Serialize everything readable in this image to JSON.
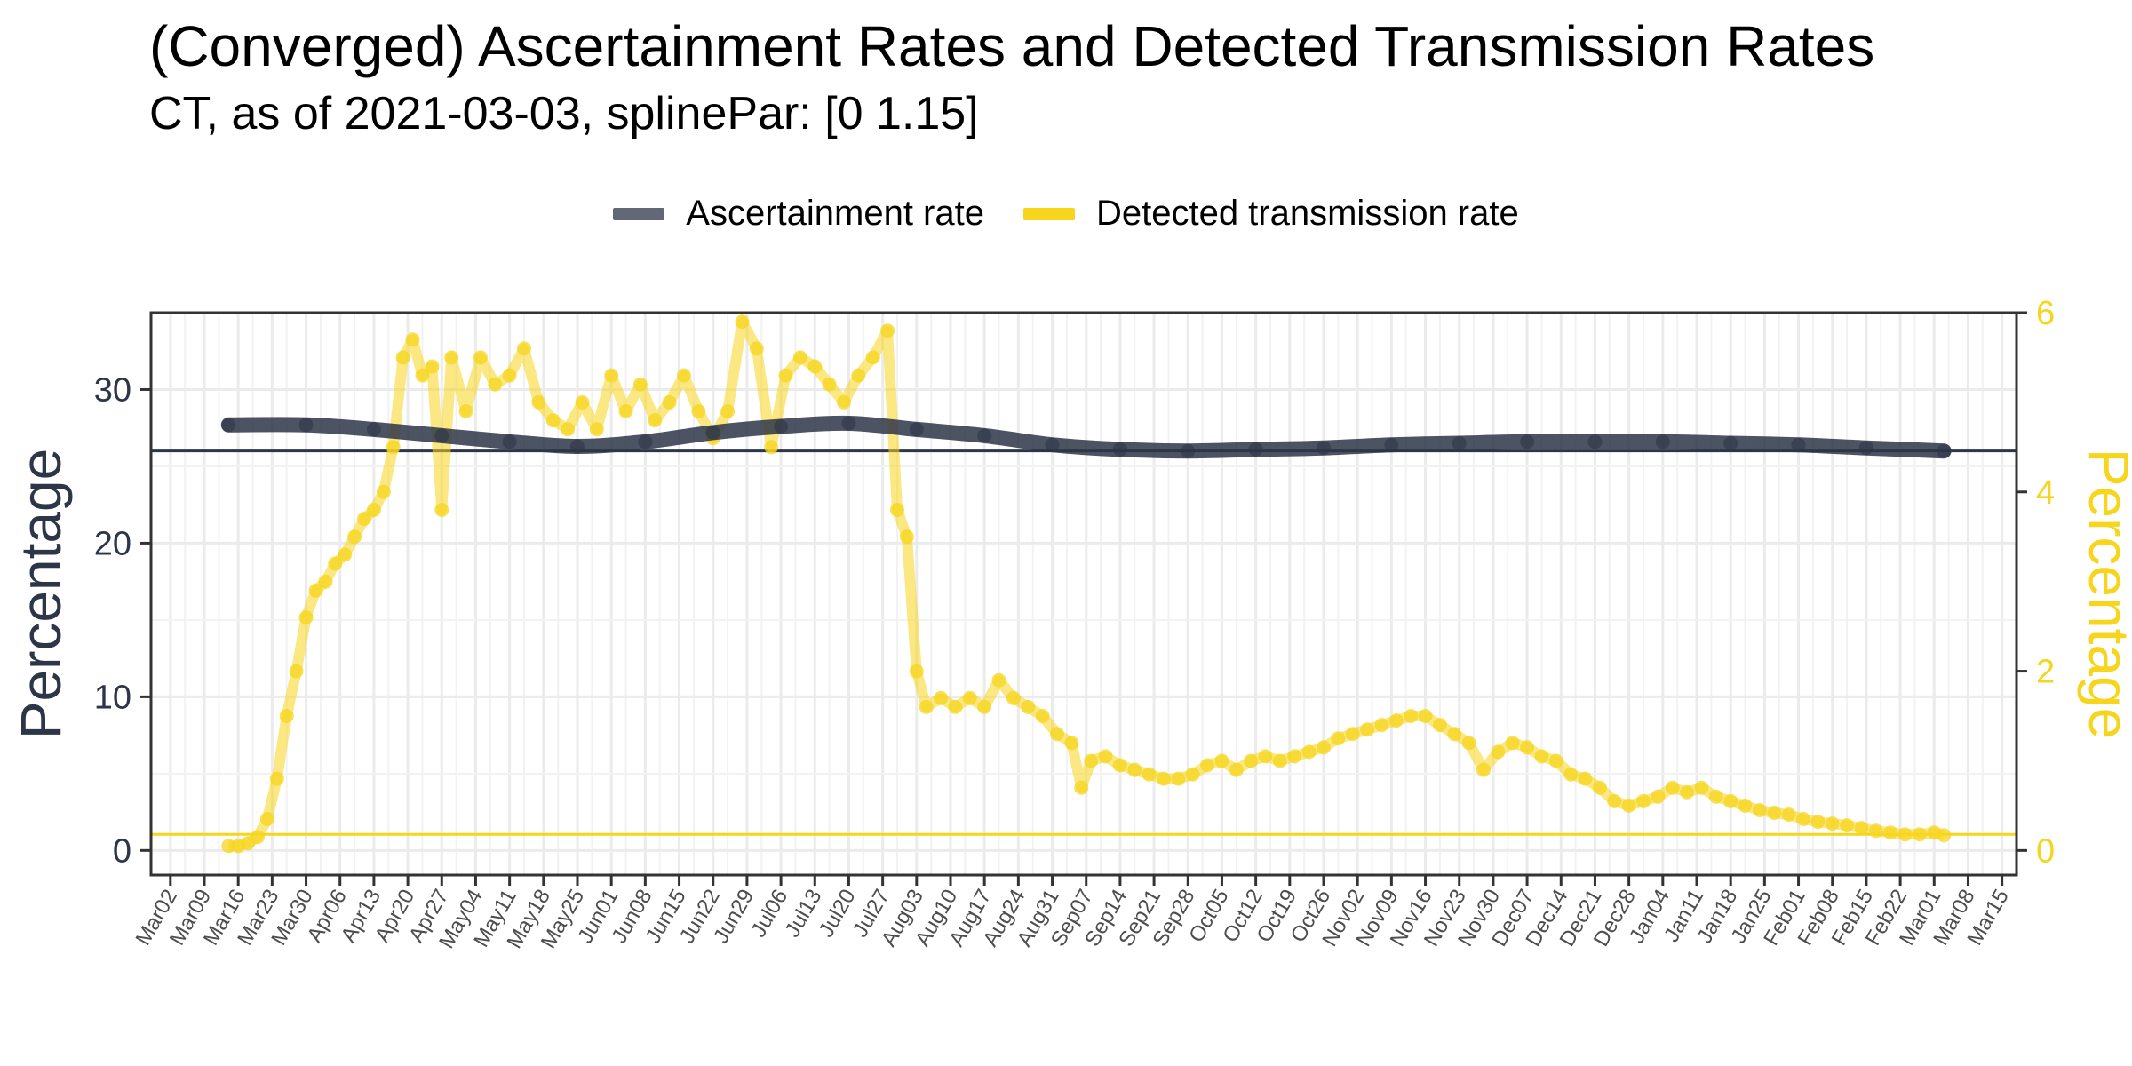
{
  "chart_data": {
    "type": "line",
    "title": "(Converged) Ascertainment Rates and Detected Transmission Rates",
    "subtitle": "CT, as of 2021-03-03, splinePar: [0 1.15]",
    "ylabel_left": "Percentage",
    "ylabel_right": "Percentage",
    "xlabel": "",
    "x_range": [
      "2020-02-27",
      "2021-03-18"
    ],
    "ylim_left": [
      -1.6,
      35
    ],
    "ylim_right": [
      -0.274,
      6.0
    ],
    "grid": true,
    "legend_position": "top",
    "x_tick_labels": [
      "Mar02",
      "Mar09",
      "Mar16",
      "Mar23",
      "Mar30",
      "Apr06",
      "Apr13",
      "Apr20",
      "Apr27",
      "May04",
      "May11",
      "May18",
      "May25",
      "Jun01",
      "Jun08",
      "Jun15",
      "Jun22",
      "Jun29",
      "Jul06",
      "Jul13",
      "Jul20",
      "Jul27",
      "Aug03",
      "Aug10",
      "Aug17",
      "Aug24",
      "Aug31",
      "Sep07",
      "Sep14",
      "Sep21",
      "Sep28",
      "Oct05",
      "Oct12",
      "Oct19",
      "Oct26",
      "Nov02",
      "Nov09",
      "Nov16",
      "Nov23",
      "Nov30",
      "Dec07",
      "Dec14",
      "Dec21",
      "Dec28",
      "Jan04",
      "Jan11",
      "Jan18",
      "Jan25",
      "Feb01",
      "Feb08",
      "Feb15",
      "Feb22",
      "Mar01",
      "Mar08",
      "Mar15"
    ],
    "y_ticks_left": [
      "0",
      "10",
      "20",
      "30"
    ],
    "y_ticks_right": [
      "0",
      "2",
      "4",
      "6"
    ],
    "reference_lines": [
      {
        "axis": "left",
        "value": 26.0,
        "color": "#2d3648"
      },
      {
        "axis": "right",
        "value": 0.18,
        "color": "#f7d51d"
      }
    ],
    "series": [
      {
        "name": "Ascertainment rate",
        "axis": "left",
        "color": "#2d3648",
        "x": [
          "2020-03-14",
          "2020-03-30",
          "2020-04-13",
          "2020-04-27",
          "2020-05-11",
          "2020-05-25",
          "2020-06-08",
          "2020-06-22",
          "2020-07-06",
          "2020-07-20",
          "2020-08-03",
          "2020-08-17",
          "2020-08-31",
          "2020-09-14",
          "2020-09-28",
          "2020-10-12",
          "2020-10-26",
          "2020-11-09",
          "2020-11-23",
          "2020-12-07",
          "2020-12-21",
          "2021-01-04",
          "2021-01-18",
          "2021-02-01",
          "2021-02-15",
          "2021-03-03"
        ],
        "y": [
          27.7,
          27.7,
          27.4,
          27.0,
          26.6,
          26.3,
          26.6,
          27.2,
          27.6,
          27.8,
          27.4,
          27.0,
          26.4,
          26.1,
          26.0,
          26.1,
          26.2,
          26.4,
          26.5,
          26.6,
          26.6,
          26.6,
          26.5,
          26.4,
          26.2,
          26.0
        ]
      },
      {
        "name": "Detected transmission rate",
        "axis": "right",
        "color": "#f7d51d",
        "x": [
          "2020-03-14",
          "2020-03-16",
          "2020-03-18",
          "2020-03-20",
          "2020-03-22",
          "2020-03-24",
          "2020-03-26",
          "2020-03-28",
          "2020-03-30",
          "2020-04-01",
          "2020-04-03",
          "2020-04-05",
          "2020-04-07",
          "2020-04-09",
          "2020-04-11",
          "2020-04-13",
          "2020-04-15",
          "2020-04-17",
          "2020-04-19",
          "2020-04-21",
          "2020-04-23",
          "2020-04-25",
          "2020-04-27",
          "2020-04-29",
          "2020-05-02",
          "2020-05-05",
          "2020-05-08",
          "2020-05-11",
          "2020-05-14",
          "2020-05-17",
          "2020-05-20",
          "2020-05-23",
          "2020-05-26",
          "2020-05-29",
          "2020-06-01",
          "2020-06-04",
          "2020-06-07",
          "2020-06-10",
          "2020-06-13",
          "2020-06-16",
          "2020-06-19",
          "2020-06-22",
          "2020-06-25",
          "2020-06-28",
          "2020-07-01",
          "2020-07-04",
          "2020-07-07",
          "2020-07-10",
          "2020-07-13",
          "2020-07-16",
          "2020-07-19",
          "2020-07-22",
          "2020-07-25",
          "2020-07-28",
          "2020-07-30",
          "2020-08-01",
          "2020-08-03",
          "2020-08-05",
          "2020-08-08",
          "2020-08-11",
          "2020-08-14",
          "2020-08-17",
          "2020-08-20",
          "2020-08-23",
          "2020-08-26",
          "2020-08-29",
          "2020-09-01",
          "2020-09-04",
          "2020-09-06",
          "2020-09-08",
          "2020-09-11",
          "2020-09-14",
          "2020-09-17",
          "2020-09-20",
          "2020-09-23",
          "2020-09-26",
          "2020-09-29",
          "2020-10-02",
          "2020-10-05",
          "2020-10-08",
          "2020-10-11",
          "2020-10-14",
          "2020-10-17",
          "2020-10-20",
          "2020-10-23",
          "2020-10-26",
          "2020-10-29",
          "2020-11-01",
          "2020-11-04",
          "2020-11-07",
          "2020-11-10",
          "2020-11-13",
          "2020-11-16",
          "2020-11-19",
          "2020-11-22",
          "2020-11-25",
          "2020-11-28",
          "2020-12-01",
          "2020-12-04",
          "2020-12-07",
          "2020-12-10",
          "2020-12-13",
          "2020-12-16",
          "2020-12-19",
          "2020-12-22",
          "2020-12-25",
          "2020-12-28",
          "2020-12-31",
          "2021-01-03",
          "2021-01-06",
          "2021-01-09",
          "2021-01-12",
          "2021-01-15",
          "2021-01-18",
          "2021-01-21",
          "2021-01-24",
          "2021-01-27",
          "2021-01-30",
          "2021-02-02",
          "2021-02-05",
          "2021-02-08",
          "2021-02-11",
          "2021-02-14",
          "2021-02-17",
          "2021-02-20",
          "2021-02-23",
          "2021-02-26",
          "2021-03-01",
          "2021-03-03"
        ],
        "y": [
          0.05,
          0.05,
          0.08,
          0.15,
          0.35,
          0.8,
          1.5,
          2.0,
          2.6,
          2.9,
          3.0,
          3.2,
          3.3,
          3.5,
          3.7,
          3.8,
          4.0,
          4.5,
          5.5,
          5.7,
          5.3,
          5.4,
          3.8,
          5.5,
          4.9,
          5.5,
          5.2,
          5.3,
          5.6,
          5.0,
          4.8,
          4.7,
          5.0,
          4.7,
          5.3,
          4.9,
          5.2,
          4.8,
          5.0,
          5.3,
          4.9,
          4.6,
          4.9,
          5.9,
          5.6,
          4.5,
          5.3,
          5.5,
          5.4,
          5.2,
          5.0,
          5.3,
          5.5,
          5.8,
          3.8,
          3.5,
          2.0,
          1.6,
          1.7,
          1.6,
          1.7,
          1.6,
          1.9,
          1.7,
          1.6,
          1.5,
          1.3,
          1.2,
          0.7,
          1.0,
          1.05,
          0.95,
          0.9,
          0.85,
          0.8,
          0.8,
          0.85,
          0.95,
          1.0,
          0.9,
          1.0,
          1.05,
          1.0,
          1.05,
          1.1,
          1.15,
          1.25,
          1.3,
          1.35,
          1.4,
          1.45,
          1.5,
          1.5,
          1.4,
          1.3,
          1.2,
          0.9,
          1.1,
          1.2,
          1.15,
          1.05,
          1.0,
          0.85,
          0.8,
          0.7,
          0.55,
          0.5,
          0.55,
          0.6,
          0.7,
          0.65,
          0.7,
          0.6,
          0.55,
          0.5,
          0.45,
          0.42,
          0.4,
          0.35,
          0.32,
          0.3,
          0.28,
          0.25,
          0.22,
          0.2,
          0.18,
          0.18,
          0.2,
          0.17
        ]
      }
    ]
  }
}
